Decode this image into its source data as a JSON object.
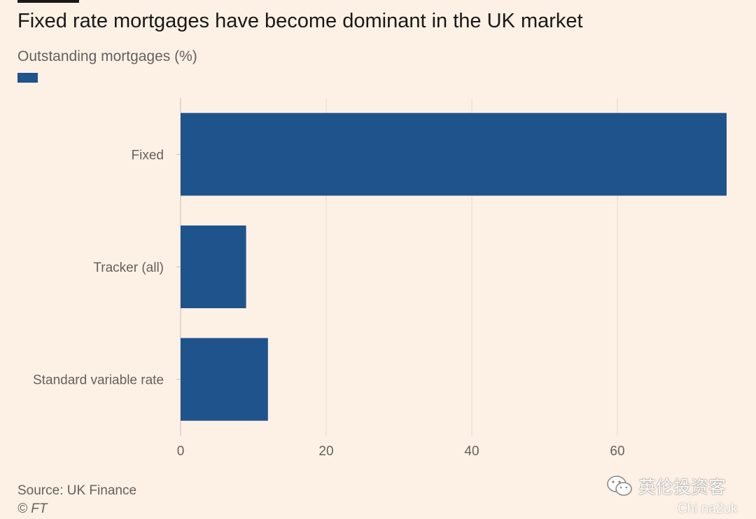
{
  "header": {
    "title": "Fixed rate mortgages have become dominant in the UK market",
    "subtitle": "Outstanding mortgages (%)"
  },
  "footer": {
    "source": "Source: UK Finance",
    "copyright": "© FT"
  },
  "watermark": {
    "name": "英伦投资客",
    "url": "Chi na2uk",
    "icon": "wechat-icon"
  },
  "colors": {
    "bar": "#1f538b",
    "background": "#fdf1e6",
    "grid": "#e4dbd2",
    "text": "#66605c"
  },
  "chart_data": {
    "type": "bar",
    "orientation": "horizontal",
    "title": "Fixed rate mortgages have become dominant in the UK market",
    "subtitle": "Outstanding mortgages (%)",
    "categories": [
      "Fixed",
      "Tracker (all)",
      "Standard variable rate"
    ],
    "values": [
      75,
      9,
      12
    ],
    "xlim": [
      0,
      75
    ],
    "xticks": [
      0,
      20,
      40,
      60
    ],
    "grid": true,
    "legend": "top-left"
  }
}
